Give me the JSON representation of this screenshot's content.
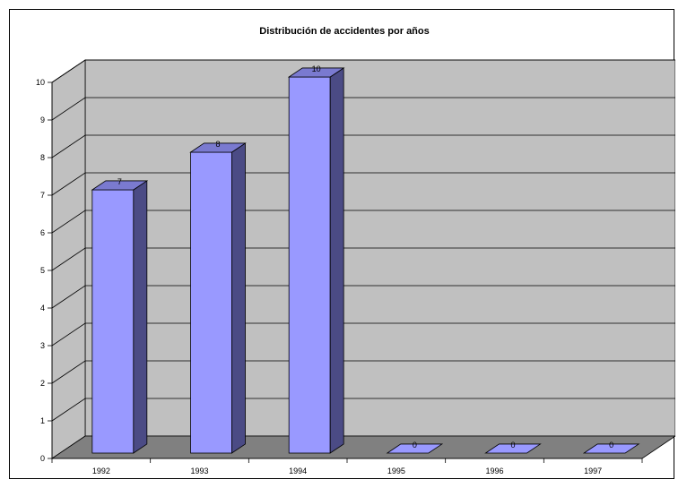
{
  "chart_data": {
    "type": "bar",
    "title": "Distribución de accidentes por años",
    "categories": [
      "1992",
      "1993",
      "1994",
      "1995",
      "1996",
      "1997"
    ],
    "values": [
      7,
      8,
      10,
      0,
      0,
      0
    ],
    "data_labels": [
      "7",
      "8",
      "10",
      "0",
      "0",
      "0"
    ],
    "ylim": [
      0,
      10
    ],
    "yticks": [
      "0",
      "1",
      "2",
      "3",
      "4",
      "5",
      "6",
      "7",
      "8",
      "9",
      "10"
    ],
    "grid": true,
    "legend": "none",
    "three_d": true,
    "colors": {
      "bar_front": "#9999ff",
      "bar_side": "#4b4b85",
      "bar_top": "#7a7ad0",
      "wall": "#c0c0c0",
      "floor": "#808080",
      "gridline": "#000000"
    }
  }
}
